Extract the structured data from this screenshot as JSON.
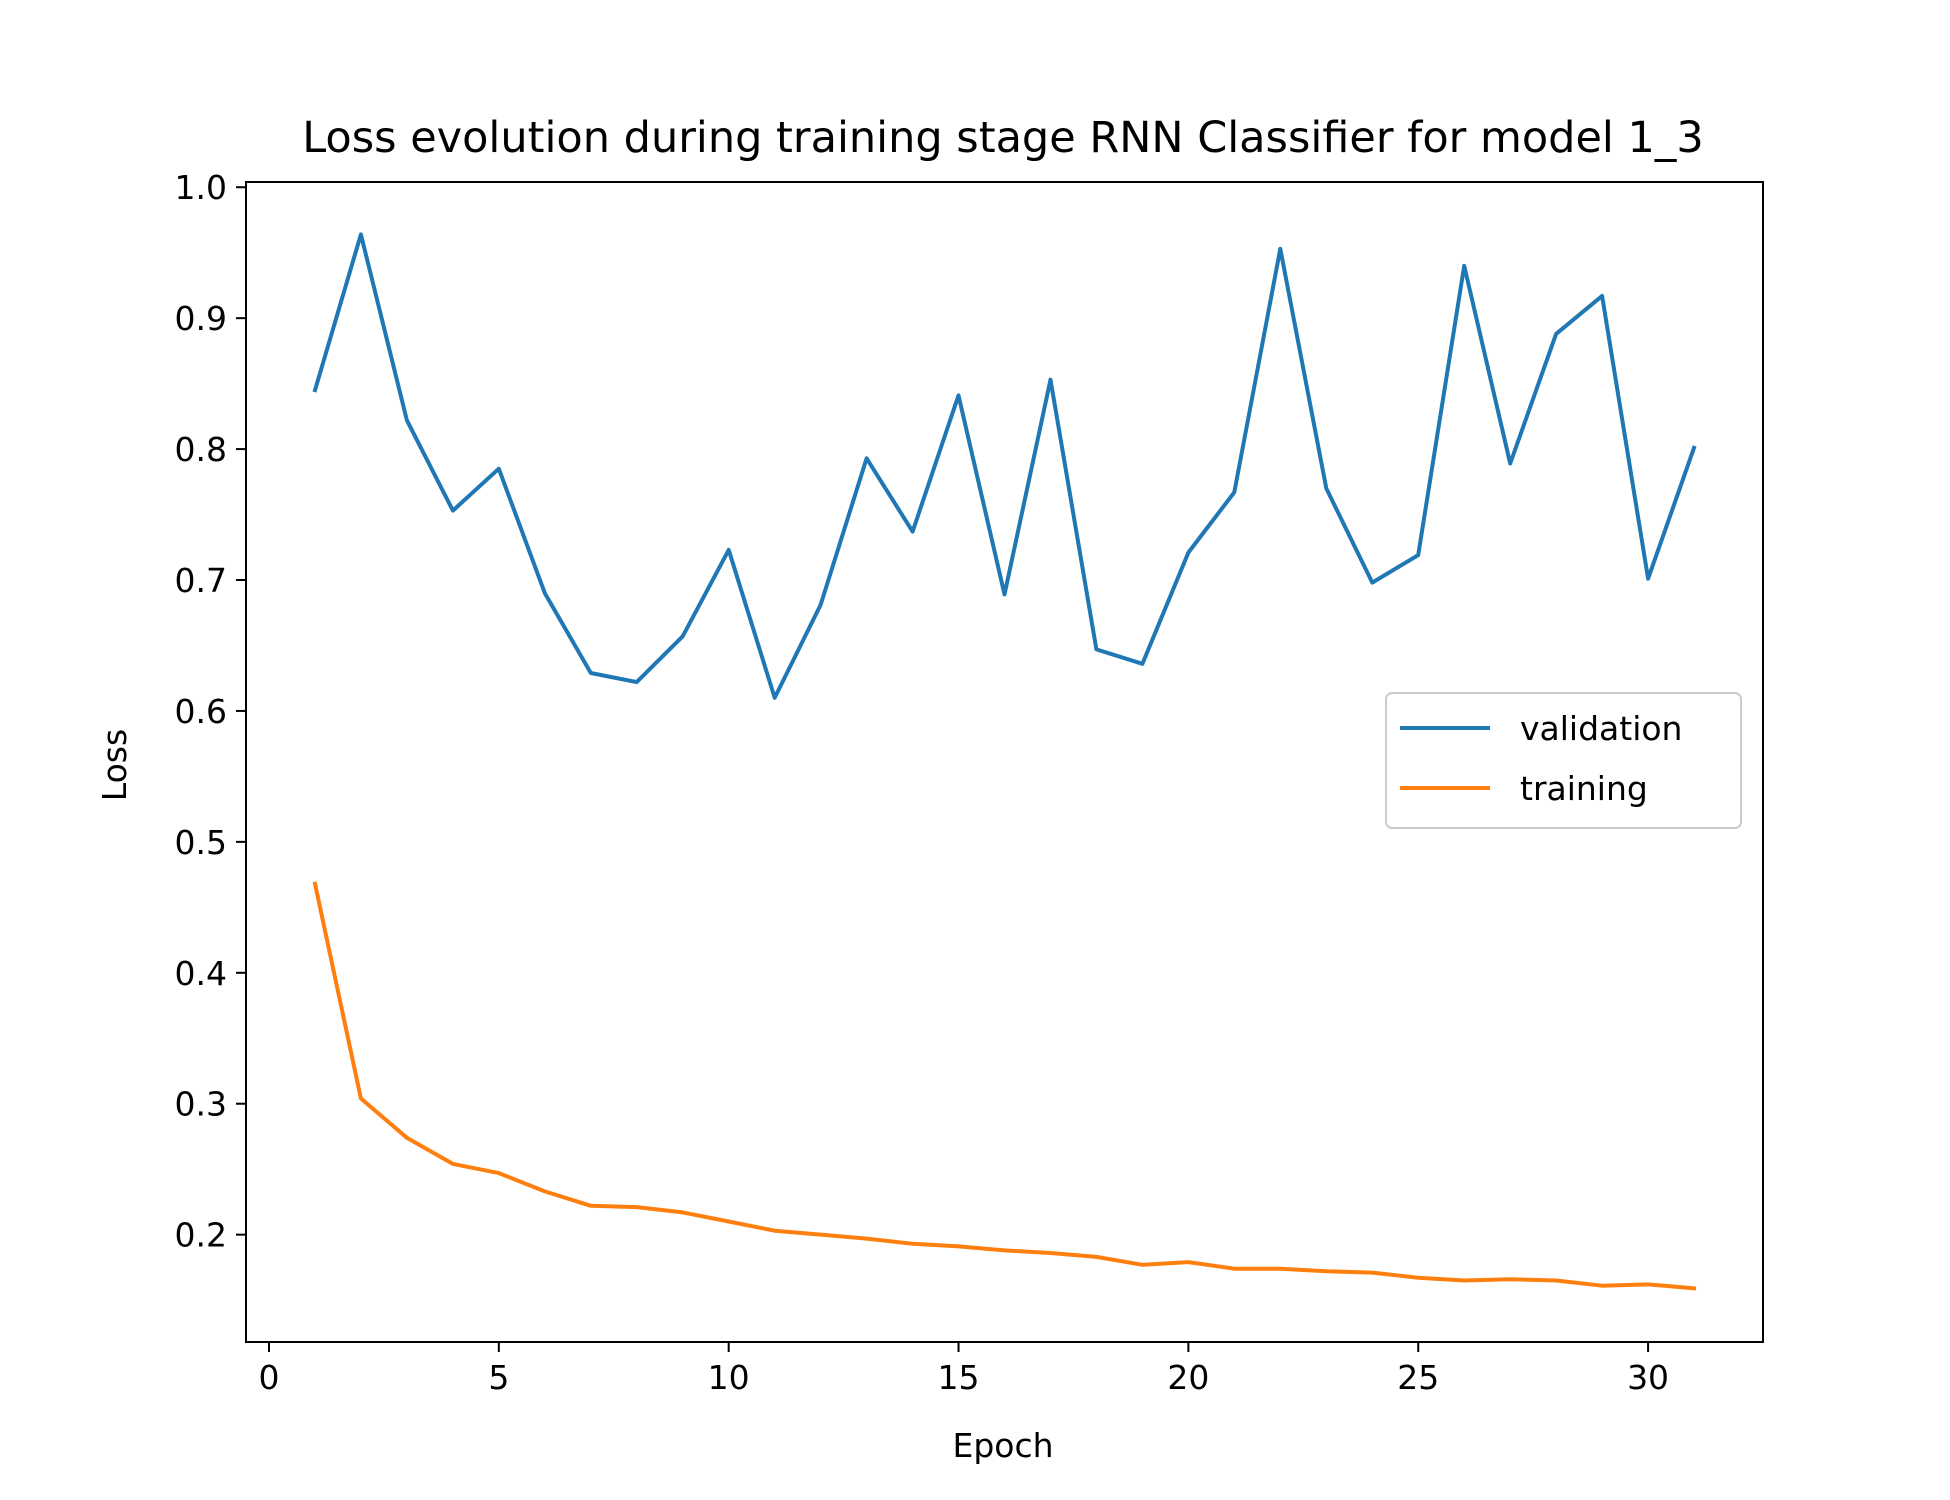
{
  "chart_data": {
    "type": "line",
    "title": "Loss evolution during training stage RNN Classifier for model 1_3",
    "xlabel": "Epoch",
    "ylabel": "Loss",
    "xlim": [
      -0.5,
      32.5
    ],
    "ylim": [
      0.118,
      1.004
    ],
    "x_ticks": [
      0,
      5,
      10,
      15,
      20,
      25,
      30
    ],
    "x_tick_labels": [
      "0",
      "5",
      "10",
      "15",
      "20",
      "25",
      "30"
    ],
    "y_ticks": [
      0.2,
      0.3,
      0.4,
      0.5,
      0.6,
      0.7,
      0.8,
      0.9,
      1.0
    ],
    "y_tick_labels": [
      "0.2",
      "0.3",
      "0.4",
      "0.5",
      "0.6",
      "0.7",
      "0.8",
      "0.9",
      "1.0"
    ],
    "grid": false,
    "legend_position": "center-right",
    "x": [
      1,
      2,
      3,
      4,
      5,
      6,
      7,
      8,
      9,
      10,
      11,
      12,
      13,
      14,
      15,
      16,
      17,
      18,
      19,
      20,
      21,
      22,
      23,
      24,
      25,
      26,
      27,
      28,
      29,
      30,
      31
    ],
    "series": [
      {
        "name": "validation",
        "color": "#1f77b4",
        "values": [
          0.845,
          0.964,
          0.822,
          0.753,
          0.785,
          0.69,
          0.629,
          0.622,
          0.657,
          0.723,
          0.61,
          0.681,
          0.793,
          0.737,
          0.841,
          0.689,
          0.853,
          0.647,
          0.636,
          0.721,
          0.767,
          0.953,
          0.77,
          0.698,
          0.719,
          0.94,
          0.789,
          0.888,
          0.917,
          0.701,
          0.801
        ]
      },
      {
        "name": "training",
        "color": "#ff7f0e",
        "values": [
          0.468,
          0.304,
          0.274,
          0.254,
          0.247,
          0.233,
          0.222,
          0.221,
          0.217,
          0.21,
          0.203,
          0.2,
          0.197,
          0.193,
          0.191,
          0.188,
          0.186,
          0.183,
          0.177,
          0.179,
          0.174,
          0.174,
          0.172,
          0.171,
          0.167,
          0.165,
          0.166,
          0.165,
          0.161,
          0.162,
          0.159
        ]
      }
    ]
  }
}
